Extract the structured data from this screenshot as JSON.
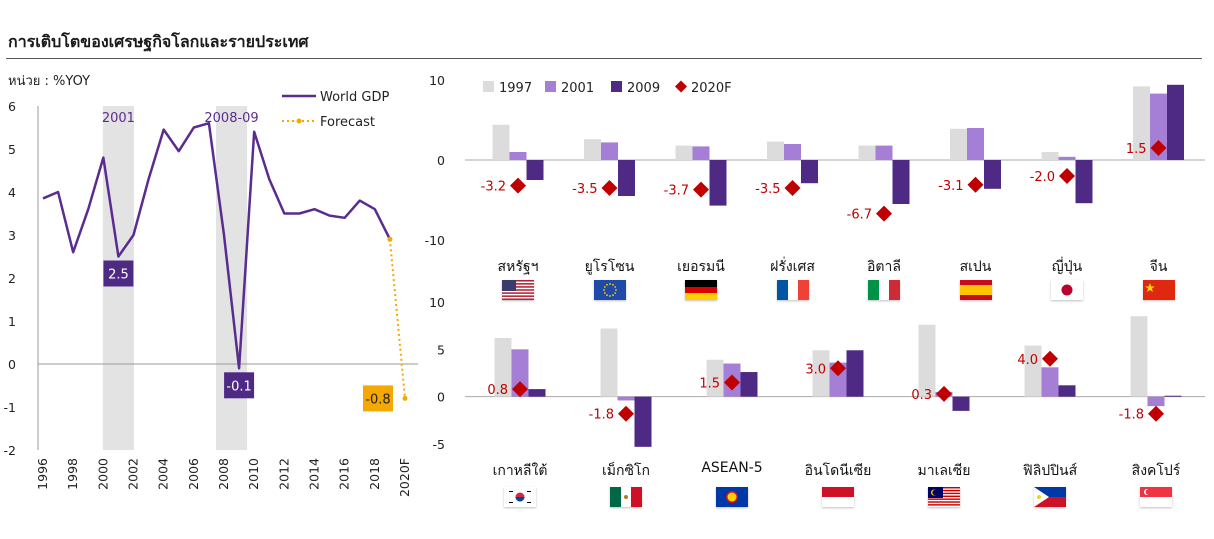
{
  "page": {
    "title": "การเติบโตของเศรษฐกิจโลกและรายประเทศ",
    "unit_label": "หน่วย : %YOY"
  },
  "colors": {
    "line": "#5b2c8f",
    "forecast": "#f5a800",
    "shade": "#e3e3e3",
    "bar_1997": "#dcdcdc",
    "bar_2001": "#a57fd6",
    "bar_2009": "#4e2a84",
    "diamond": "#c00000",
    "label_purple_bg": "#4e2a84",
    "label_orange_bg": "#f5a800"
  },
  "chart_data": [
    {
      "type": "line",
      "x": [
        "1996",
        "1997",
        "1998",
        "1999",
        "2000",
        "2001",
        "2002",
        "2003",
        "2004",
        "2005",
        "2006",
        "2007",
        "2008",
        "2009",
        "2010",
        "2011",
        "2012",
        "2013",
        "2014",
        "2015",
        "2016",
        "2017",
        "2018",
        "2019",
        "2020F"
      ],
      "x_tick_labels": [
        "1996",
        "1998",
        "2000",
        "2002",
        "2004",
        "2006",
        "2008",
        "2010",
        "2012",
        "2014",
        "2016",
        "2018",
        "2020F"
      ],
      "series": [
        {
          "name": "World GDP",
          "values": [
            3.85,
            4.0,
            2.6,
            3.6,
            4.8,
            2.5,
            3.0,
            4.3,
            5.45,
            4.95,
            5.5,
            5.6,
            3.0,
            -0.1,
            5.4,
            4.3,
            3.5,
            3.5,
            3.6,
            3.45,
            3.4,
            3.8,
            3.6,
            2.9,
            null
          ]
        },
        {
          "name": "Forecast",
          "values": [
            null,
            null,
            null,
            null,
            null,
            null,
            null,
            null,
            null,
            null,
            null,
            null,
            null,
            null,
            null,
            null,
            null,
            null,
            null,
            null,
            null,
            null,
            null,
            2.9,
            -0.8
          ]
        }
      ],
      "shaded_periods": [
        {
          "label": "2001",
          "from": "2000.5",
          "to": "2001.5"
        },
        {
          "label": "2008-09",
          "from": "2008",
          "to": "2009"
        }
      ],
      "annotations": [
        {
          "x": "2001",
          "y": 2.5,
          "text": "2.5"
        },
        {
          "x": "2009",
          "y": -0.1,
          "text": "-0.1"
        },
        {
          "x": "2020F",
          "y": -0.8,
          "text": "-0.8"
        }
      ],
      "ylim": [
        -2,
        6
      ],
      "yticks": [
        "6",
        "5",
        "4",
        "3",
        "2",
        "1",
        "0",
        "-1",
        "-2"
      ],
      "legend": "top-right"
    },
    {
      "type": "bar",
      "categories": [
        "สหรัฐฯ",
        "ยูโรโซน",
        "เยอรมนี",
        "ฝรั่งเศส",
        "อิตาลี",
        "สเปน",
        "ญี่ปุ่น",
        "จีน"
      ],
      "series": [
        {
          "name": "1997",
          "values": [
            4.4,
            2.6,
            1.8,
            2.3,
            1.8,
            3.9,
            1.0,
            9.2
          ]
        },
        {
          "name": "2001",
          "values": [
            1.0,
            2.2,
            1.7,
            2.0,
            1.8,
            4.0,
            0.4,
            8.3
          ]
        },
        {
          "name": "2009",
          "values": [
            -2.5,
            -4.5,
            -5.7,
            -2.9,
            -5.5,
            -3.6,
            -5.4,
            9.4
          ]
        },
        {
          "name": "2020F",
          "values": [
            -3.2,
            -3.5,
            -3.7,
            -3.5,
            -6.7,
            -3.1,
            -2.0,
            1.5
          ]
        }
      ],
      "data_labels": [
        "-3.2",
        "-3.5",
        "-3.7",
        "-3.5",
        "-6.7",
        "-3.1",
        "-2.0",
        "1.5"
      ],
      "ylim": [
        -10,
        10
      ],
      "yticks": [
        "10",
        "0",
        "-10"
      ],
      "legend": "top"
    },
    {
      "type": "bar",
      "categories": [
        "เกาหลีใต้",
        "เม็กซิโก",
        "ASEAN-5",
        "อินโดนีเซีย",
        "มาเลเซีย",
        "ฟิลิปปินส์",
        "สิงคโปร์"
      ],
      "series": [
        {
          "name": "1997",
          "values": [
            6.2,
            7.2,
            3.9,
            4.9,
            7.6,
            5.4,
            8.5
          ]
        },
        {
          "name": "2001",
          "values": [
            5.0,
            -0.4,
            3.5,
            3.6,
            0.5,
            3.1,
            -1.0
          ]
        },
        {
          "name": "2009",
          "values": [
            0.8,
            -5.3,
            2.6,
            4.9,
            -1.5,
            1.2,
            0.1
          ]
        },
        {
          "name": "2020F",
          "values": [
            0.8,
            -1.8,
            1.5,
            3.0,
            0.3,
            4.0,
            -1.8
          ]
        }
      ],
      "data_labels": [
        "0.8",
        "-1.8",
        "1.5",
        "3.0",
        "0.3",
        "4.0",
        "-1.8"
      ],
      "ylim": [
        -5,
        10
      ],
      "yticks": [
        "10",
        "5",
        "0",
        "-5"
      ]
    }
  ],
  "flags": [
    "us-flag",
    "eu-flag",
    "germany-flag",
    "france-flag",
    "italy-flag",
    "spain-flag",
    "japan-flag",
    "china-flag",
    "korea-flag",
    "mexico-flag",
    "asean-flag",
    "indonesia-flag",
    "malaysia-flag",
    "philippines-flag",
    "singapore-flag"
  ]
}
